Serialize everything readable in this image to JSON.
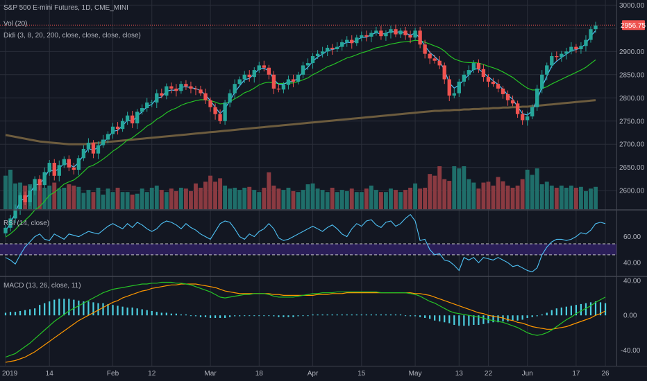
{
  "colors": {
    "background": "#131722",
    "grid": "#2a2e39",
    "up": "#26a69a",
    "down": "#ef5350",
    "vol_up": "#1f6e6a",
    "vol_down": "#8a3a41",
    "ema_fast": "#4fc3f7",
    "ema_mid": "#26c326",
    "ma_slow": "#6d5c3e",
    "rsi_line": "#4fc3f7",
    "rsi_band": "#2e1f5e",
    "macd_line": "#26c326",
    "signal_line": "#ff9800",
    "hist": "#4dd0e1",
    "price_label": "#ef5350"
  },
  "legend": {
    "title": "S&P 500 E-mini Futures, 1D, CME_MINI",
    "vol": "Vol (20)",
    "didi": "Didi (3, 8, 20, 200, close, close, close, close)",
    "rsi": "RSI (14, close)",
    "macd": "MACD (13, 26, close, 11)"
  },
  "last_price_label": "2956.75",
  "chart_data": {
    "type": "candlestick",
    "title": "S&P 500 E-mini Futures, 1D, CME_MINI",
    "x_tick_labels": [
      "2019",
      "14",
      "Feb",
      "12",
      "Mar",
      "18",
      "Apr",
      "15",
      "May",
      "13",
      "22",
      "Jun",
      "17",
      "26"
    ],
    "x_tick_bar_index": [
      0,
      9,
      22,
      30,
      42,
      52,
      63,
      73,
      84,
      93,
      99,
      107,
      117,
      123
    ],
    "price_axis": {
      "range": [
        2560,
        3005
      ],
      "ticks": [
        3000,
        2950,
        2900,
        2850,
        2800,
        2750,
        2700,
        2650,
        2600
      ]
    },
    "price_axis_labels": [
      "3000.00",
      "2950.00",
      "2900.00",
      "2850.00",
      "2800.00",
      "2750.00",
      "2700.00",
      "2650.00",
      "2600.00"
    ],
    "closes": [
      2520,
      2540,
      2560,
      2590,
      2575,
      2600,
      2625,
      2612,
      2640,
      2660,
      2632,
      2655,
      2668,
      2650,
      2645,
      2670,
      2690,
      2703,
      2680,
      2698,
      2710,
      2722,
      2738,
      2733,
      2750,
      2762,
      2745,
      2770,
      2778,
      2790,
      2790,
      2810,
      2805,
      2825,
      2820,
      2815,
      2830,
      2825,
      2820,
      2818,
      2810,
      2795,
      2780,
      2765,
      2750,
      2790,
      2810,
      2830,
      2840,
      2850,
      2845,
      2860,
      2870,
      2865,
      2850,
      2820,
      2818,
      2828,
      2840,
      2835,
      2850,
      2870,
      2875,
      2890,
      2895,
      2900,
      2908,
      2905,
      2910,
      2920,
      2925,
      2918,
      2930,
      2935,
      2932,
      2940,
      2945,
      2933,
      2940,
      2948,
      2937,
      2945,
      2935,
      2930,
      2945,
      2915,
      2895,
      2885,
      2880,
      2870,
      2840,
      2805,
      2810,
      2835,
      2850,
      2860,
      2875,
      2862,
      2845,
      2835,
      2830,
      2820,
      2808,
      2795,
      2788,
      2765,
      2752,
      2760,
      2780,
      2820,
      2850,
      2870,
      2890,
      2888,
      2895,
      2900,
      2910,
      2905,
      2912,
      2925,
      2948,
      2956
    ],
    "ema_fast": [
      2512,
      2530,
      2552,
      2578,
      2583,
      2594,
      2612,
      2614,
      2628,
      2646,
      2641,
      2648,
      2659,
      2656,
      2651,
      2661,
      2677,
      2691,
      2687,
      2694,
      2703,
      2714,
      2728,
      2730,
      2740,
      2752,
      2749,
      2761,
      2770,
      2781,
      2786,
      2799,
      2802,
      2814,
      2817,
      2816,
      2823,
      2824,
      2822,
      2820,
      2816,
      2806,
      2794,
      2780,
      2766,
      2777,
      2794,
      2812,
      2826,
      2839,
      2842,
      2852,
      2862,
      2864,
      2858,
      2840,
      2829,
      2829,
      2835,
      2835,
      2843,
      2857,
      2866,
      2879,
      2888,
      2894,
      2902,
      2904,
      2907,
      2914,
      2920,
      2919,
      2925,
      2930,
      2931,
      2936,
      2941,
      2937,
      2939,
      2944,
      2941,
      2943,
      2940,
      2935,
      2940,
      2928,
      2912,
      2898,
      2889,
      2879,
      2860,
      2832,
      2821,
      2828,
      2839,
      2850,
      2863,
      2862,
      2854,
      2845,
      2837,
      2829,
      2818,
      2806,
      2797,
      2781,
      2766,
      2763,
      2772,
      2796,
      2823,
      2847,
      2869,
      2879,
      2887,
      2894,
      2902,
      2904,
      2908,
      2917,
      2933,
      2945
    ],
    "ema_mid": [
      2500,
      2507,
      2516,
      2528,
      2536,
      2546,
      2558,
      2566,
      2577,
      2590,
      2596,
      2605,
      2614,
      2619,
      2623,
      2631,
      2641,
      2651,
      2655,
      2661,
      2668,
      2676,
      2685,
      2692,
      2700,
      2709,
      2714,
      2722,
      2730,
      2739,
      2745,
      2754,
      2760,
      2768,
      2774,
      2778,
      2784,
      2788,
      2791,
      2794,
      2796,
      2796,
      2794,
      2791,
      2787,
      2788,
      2792,
      2798,
      2804,
      2811,
      2815,
      2821,
      2828,
      2832,
      2834,
      2832,
      2831,
      2831,
      2832,
      2832,
      2835,
      2839,
      2843,
      2850,
      2855,
      2861,
      2867,
      2871,
      2876,
      2881,
      2886,
      2889,
      2893,
      2897,
      2900,
      2904,
      2908,
      2910,
      2913,
      2916,
      2918,
      2920,
      2921,
      2922,
      2924,
      2923,
      2920,
      2916,
      2912,
      2908,
      2901,
      2891,
      2884,
      2880,
      2877,
      2876,
      2876,
      2875,
      2872,
      2868,
      2865,
      2861,
      2856,
      2850,
      2844,
      2836,
      2828,
      2821,
      2817,
      2817,
      2820,
      2824,
      2830,
      2835,
      2840,
      2845,
      2850,
      2855,
      2860,
      2866,
      2874,
      2882
    ],
    "ma_slow": [
      2720,
      2718,
      2716,
      2714,
      2712,
      2710,
      2708,
      2706,
      2705,
      2704,
      2703,
      2702,
      2701,
      2700,
      2700,
      2700,
      2700,
      2701,
      2702,
      2703,
      2704,
      2705,
      2706,
      2707,
      2708,
      2709,
      2710,
      2711,
      2712,
      2713,
      2714,
      2715,
      2716,
      2717,
      2718,
      2719,
      2720,
      2721,
      2722,
      2723,
      2724,
      2725,
      2726,
      2727,
      2728,
      2729,
      2730,
      2731,
      2732,
      2733,
      2734,
      2735,
      2736,
      2737,
      2738,
      2739,
      2740,
      2741,
      2742,
      2743,
      2744,
      2745,
      2746,
      2747,
      2748,
      2749,
      2750,
      2751,
      2752,
      2753,
      2754,
      2755,
      2756,
      2757,
      2758,
      2759,
      2760,
      2761,
      2762,
      2763,
      2764,
      2765,
      2766,
      2767,
      2768,
      2769,
      2770,
      2771,
      2772,
      2772,
      2773,
      2773,
      2774,
      2774,
      2775,
      2775,
      2776,
      2776,
      2777,
      2777,
      2778,
      2778,
      2779,
      2779,
      2780,
      2780,
      2781,
      2781,
      2782,
      2783,
      2784,
      2785,
      2786,
      2787,
      2788,
      2789,
      2790,
      2791,
      2792,
      2793,
      2794,
      2795
    ],
    "volume_relative": [
      0.78,
      0.92,
      0.6,
      0.62,
      0.55,
      0.58,
      0.52,
      0.6,
      0.5,
      0.55,
      0.62,
      0.48,
      0.5,
      0.58,
      0.55,
      0.52,
      0.38,
      0.45,
      0.4,
      0.5,
      0.34,
      0.48,
      0.4,
      0.5,
      0.4,
      0.4,
      0.34,
      0.36,
      0.48,
      0.4,
      0.5,
      0.55,
      0.45,
      0.4,
      0.48,
      0.42,
      0.5,
      0.48,
      0.42,
      0.6,
      0.5,
      0.64,
      0.78,
      0.64,
      0.72,
      0.55,
      0.48,
      0.5,
      0.45,
      0.5,
      0.52,
      0.45,
      0.4,
      0.5,
      0.86,
      0.55,
      0.48,
      0.45,
      0.5,
      0.42,
      0.4,
      0.45,
      0.58,
      0.6,
      0.48,
      0.45,
      0.4,
      0.5,
      0.4,
      0.45,
      0.42,
      0.48,
      0.4,
      0.4,
      0.48,
      0.55,
      0.45,
      0.4,
      0.4,
      0.48,
      0.45,
      0.4,
      0.45,
      0.5,
      0.6,
      0.48,
      0.5,
      0.82,
      0.78,
      1.0,
      0.7,
      0.66,
      1.0,
      0.95,
      1.0,
      0.7,
      0.62,
      0.48,
      0.62,
      0.64,
      0.55,
      0.75,
      0.65,
      0.55,
      0.5,
      0.55,
      0.7,
      0.92,
      0.8,
      0.95,
      0.58,
      0.64,
      0.55,
      0.5,
      0.55,
      0.5,
      0.55,
      0.5,
      0.52,
      0.42,
      0.48,
      0.52
    ],
    "rsi_axis": {
      "range": [
        30,
        80
      ],
      "ticks": [
        60,
        40
      ],
      "upper_band": 54.5,
      "lower_band": 46
    },
    "rsi_axis_labels": [
      "60.00",
      "40.00"
    ],
    "rsi": [
      44,
      42,
      39,
      46,
      52,
      56,
      60,
      62,
      58,
      57,
      62,
      60,
      58,
      62,
      61,
      60,
      62,
      64,
      63,
      62,
      65,
      68,
      70,
      68,
      66,
      70,
      67,
      71,
      69,
      66,
      64,
      66,
      70,
      72,
      71,
      69,
      66,
      70,
      67,
      65,
      62,
      60,
      58,
      64,
      70,
      72,
      71,
      66,
      60,
      58,
      62,
      60,
      64,
      66,
      70,
      66,
      59,
      57,
      58,
      60,
      62,
      64,
      66,
      68,
      66,
      64,
      67,
      69,
      66,
      62,
      60,
      66,
      70,
      68,
      72,
      73,
      69,
      67,
      71,
      72,
      68,
      70,
      74,
      77,
      72,
      57,
      58,
      50,
      46,
      47,
      42,
      41,
      38,
      34,
      44,
      42,
      44,
      40,
      44,
      43,
      42,
      44,
      42,
      40,
      37,
      38,
      36,
      34,
      33,
      36,
      46,
      52,
      56,
      58,
      58,
      57,
      58,
      60,
      63,
      62,
      65,
      70,
      71,
      70
    ],
    "macd_axis": {
      "range": [
        -58,
        44
      ],
      "ticks": [
        40,
        0,
        -40
      ]
    },
    "macd_axis_labels": [
      "40.00",
      "0.00",
      "-40.00"
    ],
    "macd": [
      -48,
      -46,
      -44,
      -40,
      -36,
      -32,
      -27,
      -22,
      -17,
      -12,
      -7,
      -3,
      1,
      5,
      8,
      11,
      14,
      17,
      20,
      23,
      26,
      28,
      30,
      31,
      32,
      33,
      34,
      35,
      36,
      36,
      37,
      37,
      38,
      38,
      38,
      37,
      37,
      36,
      35,
      33,
      31,
      29,
      27,
      24,
      21,
      20,
      21,
      22,
      23,
      24,
      24,
      25,
      25,
      25,
      24,
      22,
      21,
      21,
      21,
      21,
      22,
      23,
      24,
      25,
      25,
      26,
      26,
      26,
      27,
      27,
      27,
      27,
      27,
      27,
      27,
      27,
      27,
      26,
      26,
      26,
      26,
      26,
      26,
      25,
      24,
      22,
      19,
      16,
      14,
      11,
      8,
      5,
      3,
      2,
      1,
      0,
      -1,
      -2,
      -3,
      -5,
      -6,
      -7,
      -8,
      -10,
      -12,
      -14,
      -17,
      -20,
      -22,
      -23,
      -22,
      -20,
      -17,
      -13,
      -9,
      -5,
      -2,
      2,
      5,
      8,
      11,
      15,
      18,
      21
    ],
    "signal": [
      -54,
      -53,
      -52,
      -50,
      -48,
      -45,
      -42,
      -38,
      -34,
      -30,
      -26,
      -22,
      -18,
      -14,
      -10,
      -6,
      -3,
      0,
      3,
      6,
      9,
      12,
      15,
      17,
      20,
      22,
      24,
      26,
      28,
      29,
      31,
      32,
      33,
      34,
      35,
      35,
      36,
      36,
      36,
      36,
      35,
      34,
      33,
      32,
      30,
      28,
      27,
      26,
      25,
      25,
      25,
      25,
      25,
      25,
      25,
      24,
      24,
      23,
      23,
      23,
      23,
      23,
      23,
      23,
      24,
      24,
      24,
      25,
      25,
      25,
      26,
      26,
      26,
      26,
      26,
      26,
      26,
      26,
      26,
      26,
      26,
      26,
      26,
      26,
      25,
      25,
      24,
      23,
      21,
      19,
      17,
      15,
      13,
      11,
      9,
      7,
      5,
      3,
      2,
      0,
      -1,
      -2,
      -3,
      -5,
      -6,
      -8,
      -9,
      -11,
      -13,
      -14,
      -15,
      -16,
      -16,
      -15,
      -14,
      -13,
      -11,
      -9,
      -7,
      -5,
      -3,
      0,
      2,
      5
    ],
    "histogram": [
      3,
      4,
      4,
      5,
      6,
      7,
      8,
      12,
      14,
      16,
      18,
      19,
      19,
      19,
      18,
      17,
      16,
      16,
      15,
      14,
      14,
      13,
      12,
      11,
      10,
      9,
      9,
      8,
      7,
      6,
      5,
      4,
      3,
      3,
      2,
      2,
      1,
      1,
      0,
      -1,
      -2,
      -2,
      -3,
      -3,
      -3,
      -3,
      -2,
      -1,
      -1,
      0,
      0,
      0,
      0,
      0,
      0,
      -1,
      -2,
      -2,
      -2,
      -2,
      -1,
      0,
      0,
      1,
      1,
      1,
      1,
      1,
      1,
      1,
      1,
      1,
      1,
      1,
      1,
      1,
      1,
      1,
      1,
      1,
      1,
      1,
      0,
      -1,
      -1,
      -2,
      -3,
      -4,
      -6,
      -7,
      -8,
      -9,
      -11,
      -12,
      -12,
      -12,
      -11,
      -11,
      -10,
      -9,
      -8,
      -8,
      -7,
      -7,
      -6,
      -6,
      -5,
      -3,
      -2,
      -1,
      1,
      3,
      6,
      8,
      9,
      10,
      11,
      12,
      13,
      14,
      15,
      16,
      15,
      14
    ]
  }
}
